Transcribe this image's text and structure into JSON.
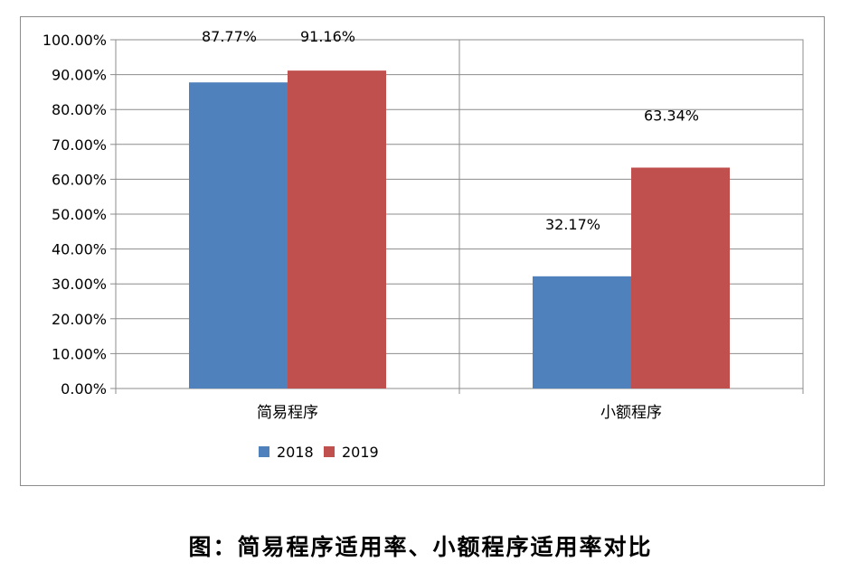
{
  "chart_data": {
    "type": "bar",
    "categories": [
      "简易程序",
      "小额程序"
    ],
    "series": [
      {
        "name": "2018",
        "values": [
          87.77,
          32.17
        ],
        "labels": [
          "87.77%",
          "32.17%"
        ],
        "color": "#4f81bd"
      },
      {
        "name": "2019",
        "values": [
          91.16,
          63.34
        ],
        "labels": [
          "91.16%",
          "63.34%"
        ],
        "color": "#c0504d"
      }
    ],
    "ylim": [
      0,
      100
    ],
    "yticks": [
      0,
      10,
      20,
      30,
      40,
      50,
      60,
      70,
      80,
      90,
      100
    ],
    "ytick_labels": [
      "0.00%",
      "10.00%",
      "20.00%",
      "30.00%",
      "40.00%",
      "50.00%",
      "60.00%",
      "70.00%",
      "80.00%",
      "90.00%",
      "100.00%"
    ],
    "grid": true,
    "legend": "bottom",
    "title": "",
    "xlabel": "",
    "ylabel": ""
  },
  "caption": "图：简易程序适用率、小额程序适用率对比"
}
